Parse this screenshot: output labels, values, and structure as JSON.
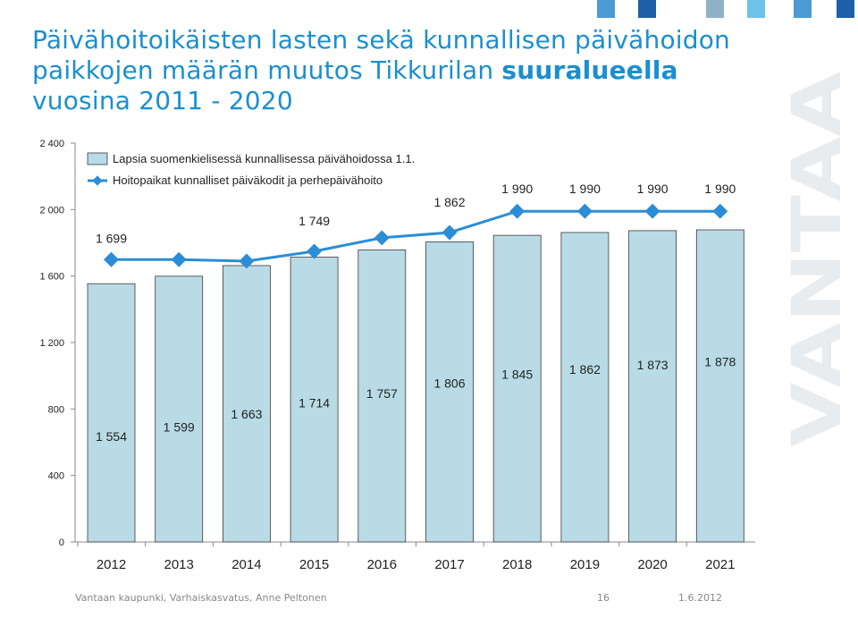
{
  "title": {
    "part1": "Päivähoitoikäisten lasten sekä kunnallisen päivähoidon paikkojen määrän muutos Tikkurilan",
    "emphasis": "suuralueella",
    "part2": "vuosina 2011 - 2020"
  },
  "brand": {
    "wordmark": "VANTAA"
  },
  "footer": {
    "source": "Vantaan kaupunki, Varhaiskasvatus, Anne Peltonen",
    "page": "16",
    "date": "1.6.2012"
  },
  "colors": {
    "title": "#1a8fd0",
    "bar": "#b8dbe6",
    "line": "#2b8dd6",
    "line_marker": "#2b8dd6",
    "accent_squares": [
      "#4a9bd6",
      "#1f5fa8",
      "#8fb1c8",
      "#6cc2e8"
    ]
  },
  "chart_data": {
    "type": "bar",
    "categories": [
      "2012",
      "2013",
      "2014",
      "2015",
      "2016",
      "2017",
      "2018",
      "2019",
      "2020",
      "2021"
    ],
    "ylim": [
      0,
      2400
    ],
    "yticks": [
      0,
      400,
      800,
      1200,
      1600,
      2000,
      2400
    ],
    "ytick_labels": [
      "0",
      "400",
      "800",
      "1 200",
      "1 600",
      "2 000",
      "2 400"
    ],
    "grid": false,
    "legend_position": "top-left",
    "series": [
      {
        "name": "Lapsia suomenkielisessä kunnallisessa päivähoidossa 1.1.",
        "kind": "bar",
        "values": [
          1554,
          1599,
          1663,
          1714,
          1757,
          1806,
          1845,
          1862,
          1873,
          1878
        ],
        "labels": [
          "1 554",
          "1 599",
          "1 663",
          "1 714",
          "1 757",
          "1 806",
          "1 845",
          "1 862",
          "1 873",
          "1 878"
        ]
      },
      {
        "name": "Hoitopaikat kunnalliset päiväkodit ja perhepäivähoito",
        "kind": "line",
        "values": [
          1699,
          1699,
          1690,
          1749,
          1830,
          1862,
          1990,
          1990,
          1990,
          1990
        ],
        "labels": [
          "1 699",
          "",
          "",
          "1 749",
          "",
          "1 862",
          "1 990",
          "1 990",
          "1 990",
          "1 990"
        ]
      }
    ]
  }
}
